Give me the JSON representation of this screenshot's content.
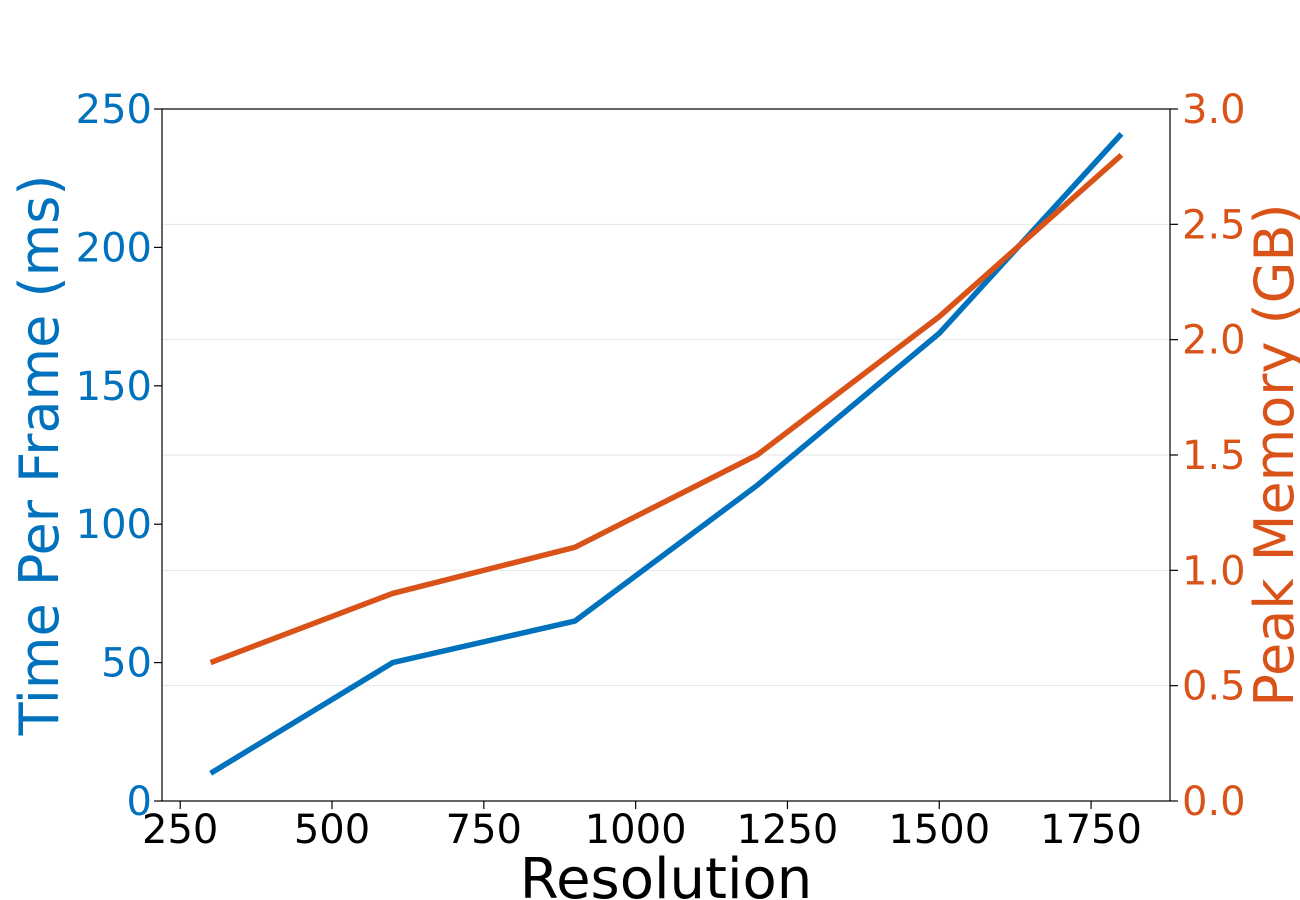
{
  "chart_data": {
    "type": "line",
    "xlabel": "Resolution",
    "ylabel_left": "Time Per Frame (ms)",
    "ylabel_right": "Peak Memory (GB)",
    "xlim": [
      220,
      1880
    ],
    "ylim_left": [
      0,
      250
    ],
    "ylim_right": [
      0,
      3.0
    ],
    "x_ticks": [
      "250",
      "500",
      "750",
      "1000",
      "1250",
      "1500",
      "1750"
    ],
    "x_tick_values": [
      250,
      500,
      750,
      1000,
      1250,
      1500,
      1750
    ],
    "y_left_ticks": [
      "0",
      "50",
      "100",
      "150",
      "200",
      "250"
    ],
    "y_left_tick_values": [
      0,
      50,
      100,
      150,
      200,
      250
    ],
    "y_right_ticks": [
      "0.0",
      "0.5",
      "1.0",
      "1.5",
      "2.0",
      "2.5",
      "3.0"
    ],
    "y_right_tick_values": [
      0,
      0.5,
      1.0,
      1.5,
      2.0,
      2.5,
      3.0
    ],
    "grid": "horizontal, right axis",
    "legend": "none",
    "series": [
      {
        "axis": "left",
        "color": "#0072BD",
        "x": [
          300,
          600,
          900,
          1200,
          1500,
          1800
        ],
        "y": [
          10,
          50,
          65,
          114,
          169,
          241
        ]
      },
      {
        "axis": "right",
        "color": "#D95319",
        "x": [
          300,
          600,
          900,
          1200,
          1500,
          1800
        ],
        "y": [
          0.6,
          0.9,
          1.1,
          1.5,
          2.1,
          2.8
        ]
      }
    ]
  }
}
